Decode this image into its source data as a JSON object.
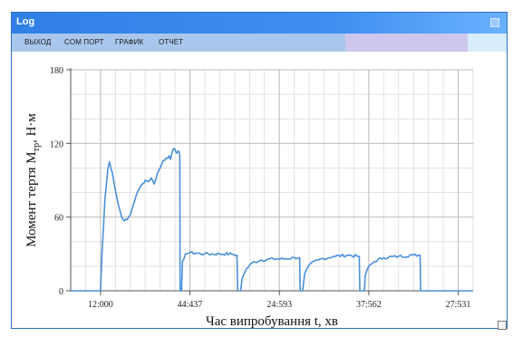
{
  "window": {
    "title": "Log"
  },
  "menu": {
    "items": [
      {
        "label": "ВЫХОД"
      },
      {
        "label": "COM ПОРТ"
      },
      {
        "label": "ГРАФИК"
      },
      {
        "label": "ОТЧЕТ"
      }
    ]
  },
  "chart_data": {
    "type": "line",
    "xlabel": "Час випробування t, хв",
    "ylabel": "Момент тертя M",
    "ylabel_sub": "тр",
    "ylabel_unit": ", Н·м",
    "ylim": [
      0,
      180
    ],
    "yticks": [
      0,
      60,
      120,
      180
    ],
    "xticks": [
      {
        "label": "12:000",
        "x": 1
      },
      {
        "label": "44:437",
        "x": 4
      },
      {
        "label": "24:593",
        "x": 7
      },
      {
        "label": "37:562",
        "x": 10
      },
      {
        "label": "27:531",
        "x": 13
      }
    ],
    "xlim": [
      0,
      13.5
    ],
    "grid": true,
    "color": "#4a90d9",
    "series": [
      {
        "values": [
          [
            0.0,
            0
          ],
          [
            1.0,
            0
          ],
          [
            1.05,
            30
          ],
          [
            1.15,
            75
          ],
          [
            1.25,
            100
          ],
          [
            1.3,
            105
          ],
          [
            1.4,
            96
          ],
          [
            1.5,
            82
          ],
          [
            1.6,
            70
          ],
          [
            1.7,
            61
          ],
          [
            1.8,
            57
          ],
          [
            1.9,
            58
          ],
          [
            2.0,
            62
          ],
          [
            2.1,
            70
          ],
          [
            2.2,
            78
          ],
          [
            2.3,
            83
          ],
          [
            2.4,
            87
          ],
          [
            2.5,
            90
          ],
          [
            2.6,
            89
          ],
          [
            2.7,
            92
          ],
          [
            2.8,
            87
          ],
          [
            2.9,
            95
          ],
          [
            3.0,
            100
          ],
          [
            3.1,
            106
          ],
          [
            3.2,
            108
          ],
          [
            3.3,
            110
          ],
          [
            3.35,
            107
          ],
          [
            3.45,
            116
          ],
          [
            3.55,
            112
          ],
          [
            3.62,
            114
          ],
          [
            3.66,
            110
          ],
          [
            3.67,
            0
          ],
          [
            3.72,
            0
          ],
          [
            3.75,
            24
          ],
          [
            3.85,
            30
          ],
          [
            4.0,
            31
          ],
          [
            4.5,
            30
          ],
          [
            5.0,
            30
          ],
          [
            5.4,
            30
          ],
          [
            5.58,
            29
          ],
          [
            5.6,
            0
          ],
          [
            5.7,
            0
          ],
          [
            5.75,
            10
          ],
          [
            5.9,
            18
          ],
          [
            6.1,
            23
          ],
          [
            6.4,
            25
          ],
          [
            6.8,
            26
          ],
          [
            7.2,
            26
          ],
          [
            7.5,
            27
          ],
          [
            7.68,
            27
          ],
          [
            7.7,
            0
          ],
          [
            7.78,
            0
          ],
          [
            7.85,
            14
          ],
          [
            8.0,
            21
          ],
          [
            8.3,
            25
          ],
          [
            8.8,
            28
          ],
          [
            9.3,
            29
          ],
          [
            9.68,
            28
          ],
          [
            9.7,
            0
          ],
          [
            9.85,
            0
          ],
          [
            9.88,
            12
          ],
          [
            10.0,
            20
          ],
          [
            10.2,
            24
          ],
          [
            10.5,
            27
          ],
          [
            11.0,
            28
          ],
          [
            11.5,
            29
          ],
          [
            11.72,
            29
          ],
          [
            11.74,
            0
          ],
          [
            13.5,
            0
          ]
        ]
      }
    ]
  }
}
